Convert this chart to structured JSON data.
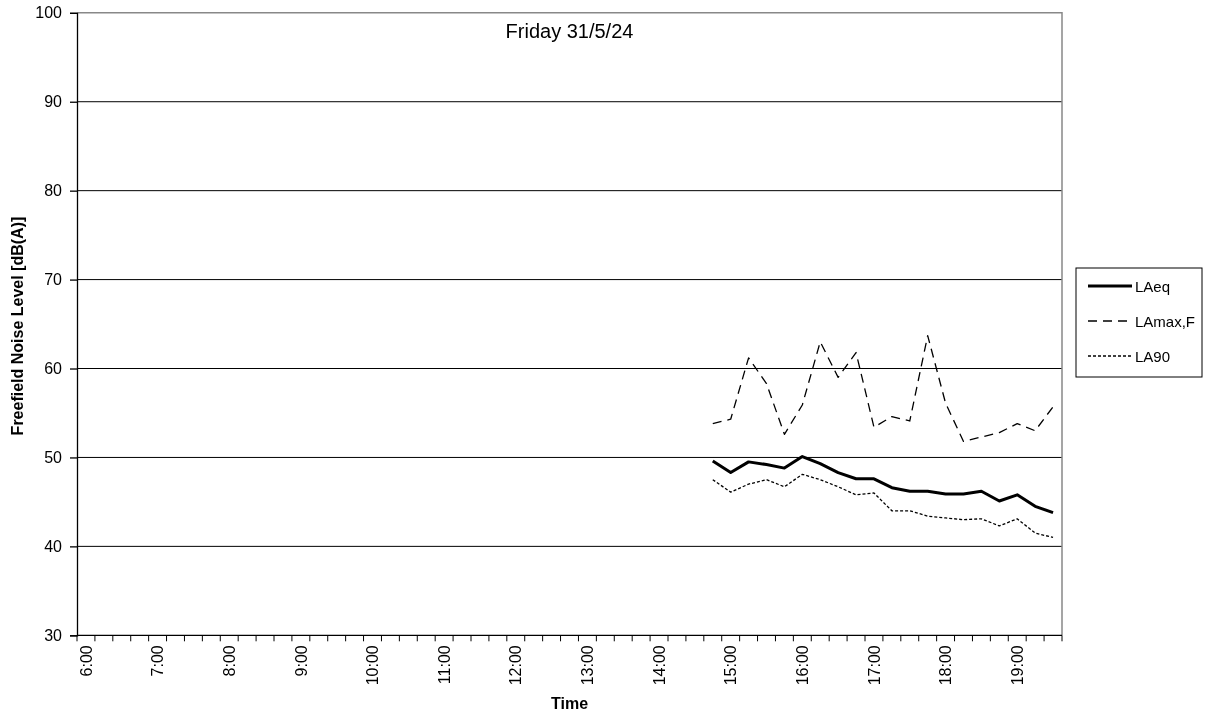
{
  "chart_data": {
    "type": "line",
    "title": "Friday 31/5/24",
    "xlabel": "Time",
    "ylabel": "Freefield Noise Level [dB(A)]",
    "categories": [
      "6:00",
      null,
      null,
      null,
      "7:00",
      null,
      null,
      null,
      "8:00",
      null,
      null,
      null,
      "9:00",
      null,
      null,
      null,
      "10:00",
      null,
      null,
      null,
      "11:00",
      null,
      null,
      null,
      "12:00",
      null,
      null,
      null,
      "13:00",
      null,
      null,
      null,
      "14:00",
      null,
      null,
      null,
      "15:00",
      null,
      null,
      null,
      "16:00",
      null,
      null,
      null,
      "17:00",
      null,
      null,
      null,
      "18:00",
      null,
      null,
      null,
      "19:00",
      null,
      null
    ],
    "series": [
      {
        "name": "LAeq",
        "color": "#000000",
        "line_style": "solid",
        "values": [
          null,
          null,
          null,
          null,
          null,
          null,
          null,
          null,
          null,
          null,
          null,
          null,
          null,
          null,
          null,
          null,
          null,
          null,
          null,
          null,
          null,
          null,
          null,
          null,
          null,
          null,
          null,
          null,
          null,
          null,
          null,
          null,
          null,
          null,
          null,
          49.6,
          48.3,
          49.5,
          49.2,
          48.8,
          50.1,
          49.3,
          48.3,
          47.6,
          47.6,
          46.6,
          46.2,
          46.2,
          45.9,
          45.9,
          46.2,
          45.1,
          45.8,
          44.5,
          43.8
        ]
      },
      {
        "name": "LAmax,F",
        "color": "#000000",
        "line_style": "dashed",
        "values": [
          null,
          null,
          null,
          null,
          null,
          null,
          null,
          null,
          null,
          null,
          null,
          null,
          null,
          null,
          null,
          null,
          null,
          null,
          null,
          null,
          null,
          null,
          null,
          null,
          null,
          null,
          null,
          null,
          null,
          null,
          null,
          null,
          null,
          null,
          null,
          53.8,
          54.3,
          61.2,
          58.3,
          52.6,
          55.9,
          63.0,
          59.0,
          61.8,
          53.4,
          54.6,
          54.1,
          63.7,
          56.1,
          51.8,
          52.3,
          52.8,
          53.8,
          53.0,
          55.7
        ]
      },
      {
        "name": "LA90",
        "color": "#000000",
        "line_style": "dotted",
        "values": [
          null,
          null,
          null,
          null,
          null,
          null,
          null,
          null,
          null,
          null,
          null,
          null,
          null,
          null,
          null,
          null,
          null,
          null,
          null,
          null,
          null,
          null,
          null,
          null,
          null,
          null,
          null,
          null,
          null,
          null,
          null,
          null,
          null,
          null,
          null,
          47.5,
          46.1,
          47.0,
          47.5,
          46.7,
          48.1,
          47.5,
          46.7,
          45.8,
          46.0,
          44.0,
          44.0,
          43.4,
          43.2,
          43.0,
          43.1,
          42.3,
          43.1,
          41.5,
          41.0
        ]
      }
    ],
    "ylim": [
      30,
      100
    ],
    "yticks": [
      30,
      40,
      50,
      60,
      70,
      80,
      90,
      100
    ],
    "grid": "y",
    "legend": "right",
    "marker": "none"
  }
}
